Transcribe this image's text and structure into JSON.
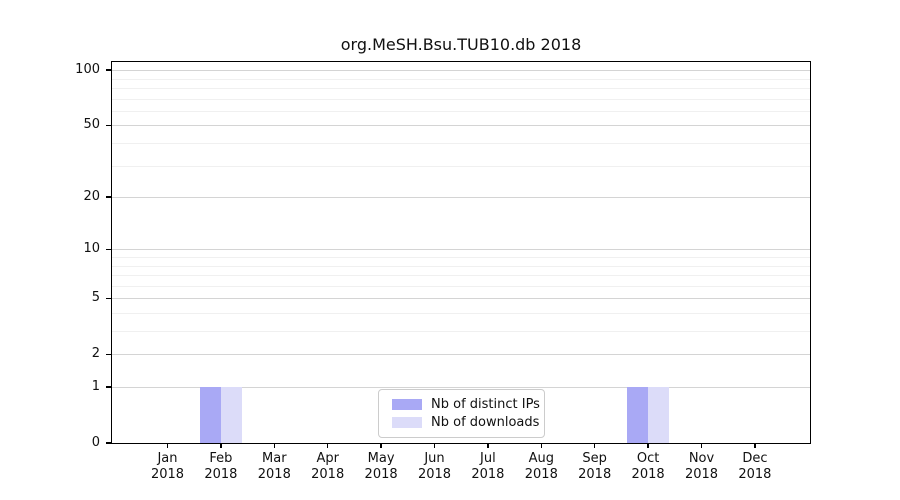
{
  "title": "org.MeSH.Bsu.TUB10.db 2018",
  "chart_data": {
    "type": "bar",
    "title": "org.MeSH.Bsu.TUB10.db 2018",
    "categories": [
      "Jan 2018",
      "Feb 2018",
      "Mar 2018",
      "Apr 2018",
      "May 2018",
      "Jun 2018",
      "Jul 2018",
      "Aug 2018",
      "Sep 2018",
      "Oct 2018",
      "Nov 2018",
      "Dec 2018"
    ],
    "x_months": [
      "Jan",
      "Feb",
      "Mar",
      "Apr",
      "May",
      "Jun",
      "Jul",
      "Aug",
      "Sep",
      "Oct",
      "Nov",
      "Dec"
    ],
    "x_year": "2018",
    "series": [
      {
        "name": "Nb of distinct IPs",
        "color": "#a9a9f5",
        "values": [
          0,
          1,
          0,
          0,
          0,
          0,
          0,
          0,
          0,
          1,
          0,
          0
        ]
      },
      {
        "name": "Nb of downloads",
        "color": "#dcdcf9",
        "values": [
          0,
          1,
          0,
          0,
          0,
          0,
          0,
          0,
          0,
          1,
          0,
          0
        ]
      }
    ],
    "yscale": "log1p",
    "yticks": [
      0,
      1,
      2,
      5,
      10,
      20,
      50,
      100
    ],
    "yticks_minor": [
      3,
      4,
      6,
      7,
      8,
      9,
      30,
      40,
      60,
      70,
      80,
      90
    ],
    "ylim": [
      0,
      110
    ],
    "grid": "horizontal",
    "legend_position": "lower center"
  },
  "colors": {
    "background": "#ffffff",
    "axis": "#000000",
    "grid_major": "#d4d4d4",
    "grid_minor": "#f0f0f0",
    "legend_border": "#cccccc",
    "distinct_ips": "#a9a9f5",
    "downloads": "#dcdcf9"
  }
}
